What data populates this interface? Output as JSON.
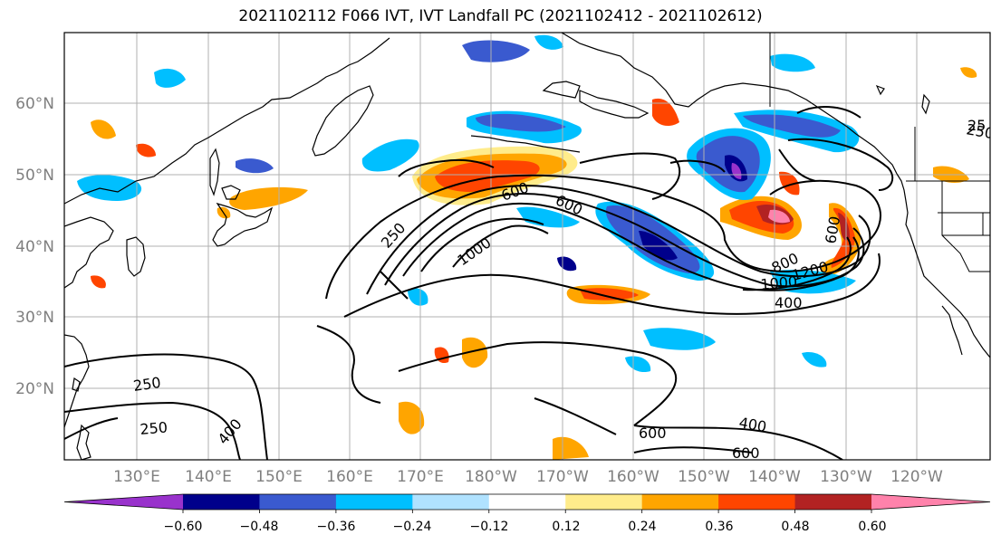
{
  "title": "2021102112 F066 IVT, IVT Landfall PC (2021102412 - 2021102612)",
  "map": {
    "lon_labels": [
      "130°E",
      "140°E",
      "150°E",
      "160°E",
      "170°E",
      "180°W",
      "170°W",
      "160°W",
      "150°W",
      "140°W",
      "130°W",
      "120°W"
    ],
    "lat_labels": [
      "60°N",
      "50°N",
      "40°N",
      "30°N",
      "20°N"
    ],
    "contour_labels": [
      "250",
      "600",
      "600",
      "1000",
      "250",
      "800",
      "1000",
      "1200",
      "400",
      "600",
      "250",
      "250",
      "400",
      "600",
      "400",
      "600",
      "25"
    ],
    "colors": {
      "purple": "#9932cc",
      "navy": "#00008b",
      "royalblue": "#3a5acf",
      "deepskyblue": "#00bfff",
      "lightblue": "#b0e2ff",
      "white": "#ffffff",
      "yellow": "#ffec8b",
      "orange": "#ffa500",
      "orangered": "#ff4500",
      "firebrick": "#b22222",
      "pink": "#ff82ab"
    }
  },
  "colorbar": {
    "ticks": [
      "−0.60",
      "−0.48",
      "−0.36",
      "−0.24",
      "−0.12",
      "0.12",
      "0.24",
      "0.36",
      "0.48",
      "0.60"
    ],
    "levels": [
      {
        "min": -0.72,
        "max": -0.6,
        "color": "#9932cc"
      },
      {
        "min": -0.6,
        "max": -0.48,
        "color": "#00008b"
      },
      {
        "min": -0.48,
        "max": -0.36,
        "color": "#3a5acf"
      },
      {
        "min": -0.36,
        "max": -0.24,
        "color": "#00bfff"
      },
      {
        "min": -0.24,
        "max": -0.12,
        "color": "#b0e2ff"
      },
      {
        "min": -0.12,
        "max": 0.12,
        "color": "#ffffff"
      },
      {
        "min": 0.12,
        "max": 0.24,
        "color": "#ffec8b"
      },
      {
        "min": 0.24,
        "max": 0.36,
        "color": "#ffa500"
      },
      {
        "min": 0.36,
        "max": 0.48,
        "color": "#ff4500"
      },
      {
        "min": 0.48,
        "max": 0.6,
        "color": "#b22222"
      },
      {
        "min": 0.6,
        "max": 0.72,
        "color": "#ff82ab"
      }
    ]
  }
}
